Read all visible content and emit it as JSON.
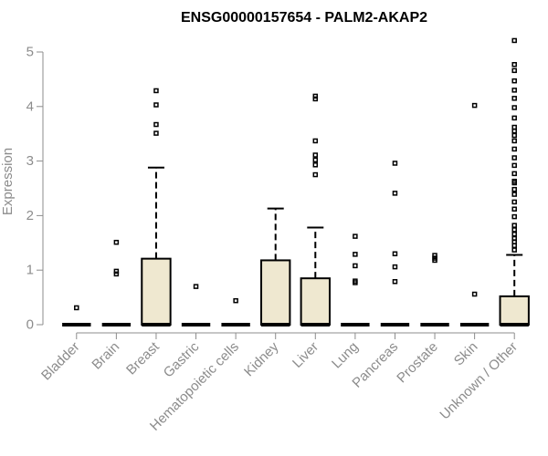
{
  "chart_data": {
    "type": "box",
    "title": "ENSG00000157654 - PALM2-AKAP2",
    "xlabel": "",
    "ylabel": "Expression",
    "ylim": [
      0,
      5.25
    ],
    "yticks": [
      0,
      1,
      2,
      3,
      4,
      5
    ],
    "ytick_labels": [
      "0",
      "1",
      "2",
      "3",
      "4",
      "5"
    ],
    "categories": [
      "Bladder",
      "Brain",
      "Breast",
      "Gastric",
      "Hematopoietic cells",
      "Kidney",
      "Liver",
      "Lung",
      "Pancreas",
      "Prostate",
      "Skin",
      "Unknown / Other"
    ],
    "box_fill": "#efe8d0",
    "boxes": [
      {
        "category": "Bladder",
        "q1": 0,
        "median": 0,
        "q3": 0,
        "whisker_low": 0,
        "whisker_high": 0,
        "outliers": [
          0.31
        ]
      },
      {
        "category": "Brain",
        "q1": 0,
        "median": 0,
        "q3": 0,
        "whisker_low": 0,
        "whisker_high": 0,
        "outliers": [
          0.93,
          0.98,
          1.51
        ]
      },
      {
        "category": "Breast",
        "q1": 0,
        "median": 0,
        "q3": 1.21,
        "whisker_low": 0,
        "whisker_high": 2.88,
        "outliers": [
          3.51,
          3.67,
          4.03,
          4.29
        ]
      },
      {
        "category": "Gastric",
        "q1": 0,
        "median": 0,
        "q3": 0,
        "whisker_low": 0,
        "whisker_high": 0,
        "outliers": [
          0.7
        ]
      },
      {
        "category": "Hematopoietic cells",
        "q1": 0,
        "median": 0,
        "q3": 0,
        "whisker_low": 0,
        "whisker_high": 0,
        "outliers": [
          0.44
        ]
      },
      {
        "category": "Kidney",
        "q1": 0,
        "median": 0,
        "q3": 1.18,
        "whisker_low": 0,
        "whisker_high": 2.13,
        "outliers": []
      },
      {
        "category": "Liver",
        "q1": 0,
        "median": 0,
        "q3": 0.85,
        "whisker_low": 0,
        "whisker_high": 1.78,
        "outliers": [
          2.75,
          2.93,
          3.02,
          3.11,
          3.37,
          4.14,
          4.19
        ]
      },
      {
        "category": "Lung",
        "q1": 0,
        "median": 0,
        "q3": 0,
        "whisker_low": 0,
        "whisker_high": 0,
        "outliers": [
          0.77,
          0.8,
          1.08,
          1.29,
          1.62
        ]
      },
      {
        "category": "Pancreas",
        "q1": 0,
        "median": 0,
        "q3": 0,
        "whisker_low": 0,
        "whisker_high": 0,
        "outliers": [
          0.79,
          1.06,
          1.3,
          2.41,
          2.96
        ]
      },
      {
        "category": "Prostate",
        "q1": 0,
        "median": 0,
        "q3": 0,
        "whisker_low": 0,
        "whisker_high": 0,
        "outliers": [
          1.18,
          1.22,
          1.27
        ]
      },
      {
        "category": "Skin",
        "q1": 0,
        "median": 0,
        "q3": 0,
        "whisker_low": 0,
        "whisker_high": 0,
        "outliers": [
          0.56,
          4.02
        ]
      },
      {
        "category": "Unknown / Other",
        "q1": 0,
        "median": 0,
        "q3": 0.52,
        "whisker_low": 0,
        "whisker_high": 1.28,
        "outliers": [
          1.37,
          1.45,
          1.52,
          1.58,
          1.66,
          1.74,
          1.82,
          1.98,
          2.12,
          2.25,
          2.39,
          2.48,
          2.6,
          2.63,
          2.77,
          2.92,
          3.06,
          3.22,
          3.37,
          3.47,
          3.55,
          3.62,
          3.79,
          3.98,
          4.15,
          4.3,
          4.47,
          4.66,
          4.77,
          5.21
        ]
      }
    ]
  }
}
